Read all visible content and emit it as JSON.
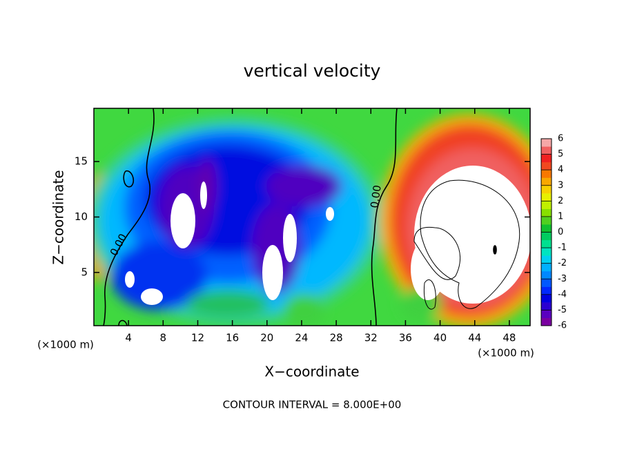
{
  "chart_data": {
    "type": "contour",
    "title": "vertical velocity",
    "x_label": "X−coordinate",
    "y_label": "Z−coordinate",
    "x_unit": "(×1000 m)",
    "y_unit": "(×1000 m)",
    "footer": "CONTOUR INTERVAL = 8.000E+00",
    "contour_labels": [
      "0.00",
      "0.00"
    ],
    "xlim": [
      0,
      50.4
    ],
    "ylim": [
      0.2,
      19.8
    ],
    "xticks": [
      4,
      8,
      12,
      16,
      20,
      24,
      28,
      32,
      36,
      40,
      44,
      48
    ],
    "yticks": [
      5,
      10,
      15
    ],
    "colorbar": {
      "lim": [
        -6,
        6
      ],
      "ticks": [
        -6,
        -5,
        -4,
        -3,
        -2,
        -1,
        0,
        1,
        2,
        3,
        4,
        5,
        6
      ],
      "colors": [
        "#7a00a0",
        "#5a00c0",
        "#2a00d0",
        "#0000e0",
        "#0028ff",
        "#0058ff",
        "#0088ff",
        "#00b0ff",
        "#00d0f0",
        "#00e4c0",
        "#00e090",
        "#00cc60",
        "#10c030",
        "#50d020",
        "#88e000",
        "#c0f000",
        "#e8f000",
        "#f8d000",
        "#f8a800",
        "#f87800",
        "#f04820",
        "#f02020",
        "#f06060",
        "#f5a8a8"
      ]
    }
  }
}
